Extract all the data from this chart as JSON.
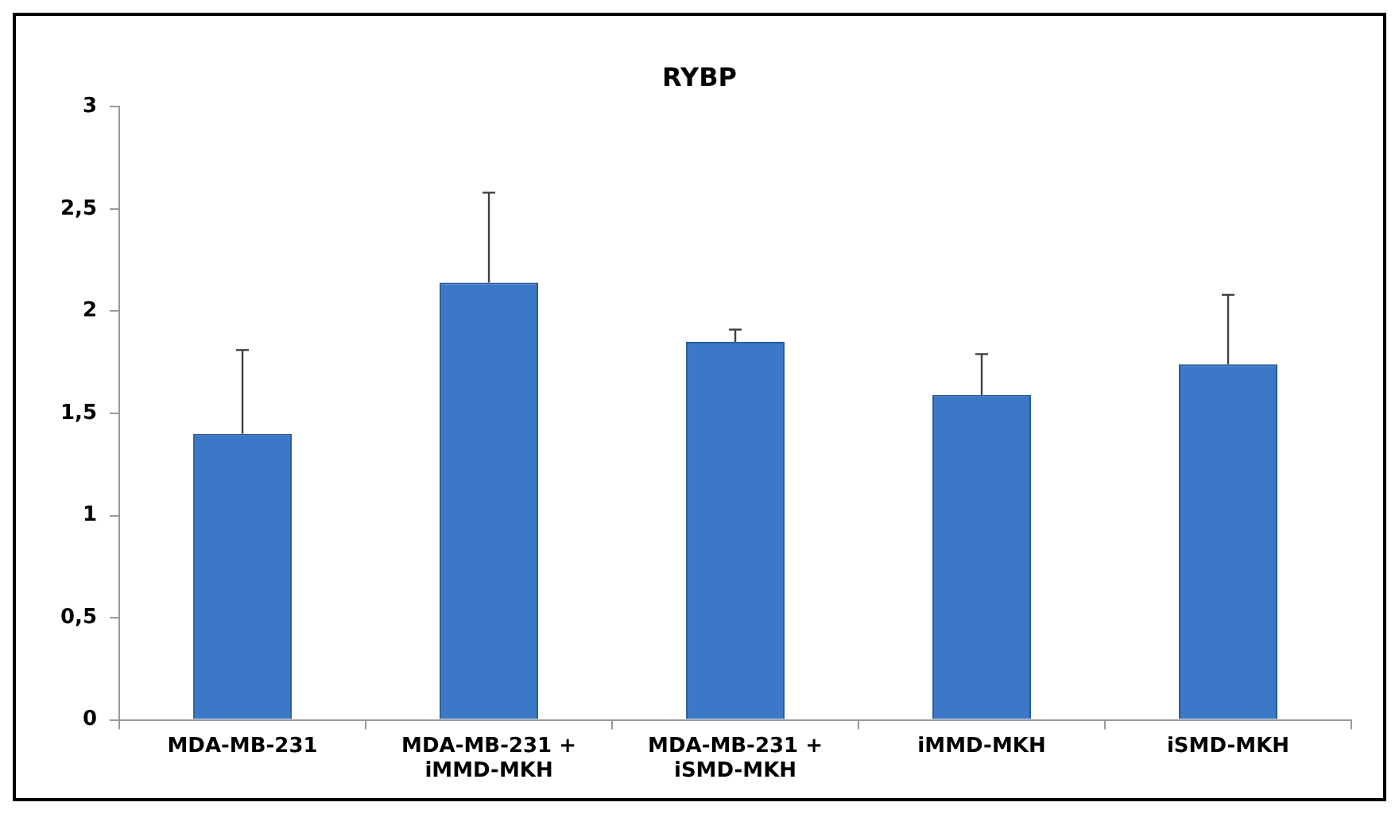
{
  "chart_data": {
    "type": "bar",
    "title": "RYBP",
    "categories": [
      "MDA-MB-231",
      "MDA-MB-231 + iMMD-MKH",
      "MDA-MB-231 + iSMD-MKH",
      "iMMD-MKH",
      "iSMD-MKH"
    ],
    "values": [
      1.4,
      2.14,
      1.85,
      1.59,
      1.74
    ],
    "errors": [
      [
        1.4,
        1.81
      ],
      [
        2.14,
        2.58
      ],
      [
        1.85,
        1.91
      ],
      [
        1.59,
        1.79
      ],
      [
        1.74,
        2.08
      ]
    ],
    "color": "#3c78c8",
    "ylim": [
      0,
      3
    ],
    "yticks": [
      0,
      {
        "value": 0.5,
        "label": "0,5"
      },
      1,
      {
        "value": 1.5,
        "label": "1,5"
      },
      2,
      {
        "value": 2.5,
        "label": "2,5"
      },
      3
    ],
    "grid": false,
    "legend": false
  }
}
